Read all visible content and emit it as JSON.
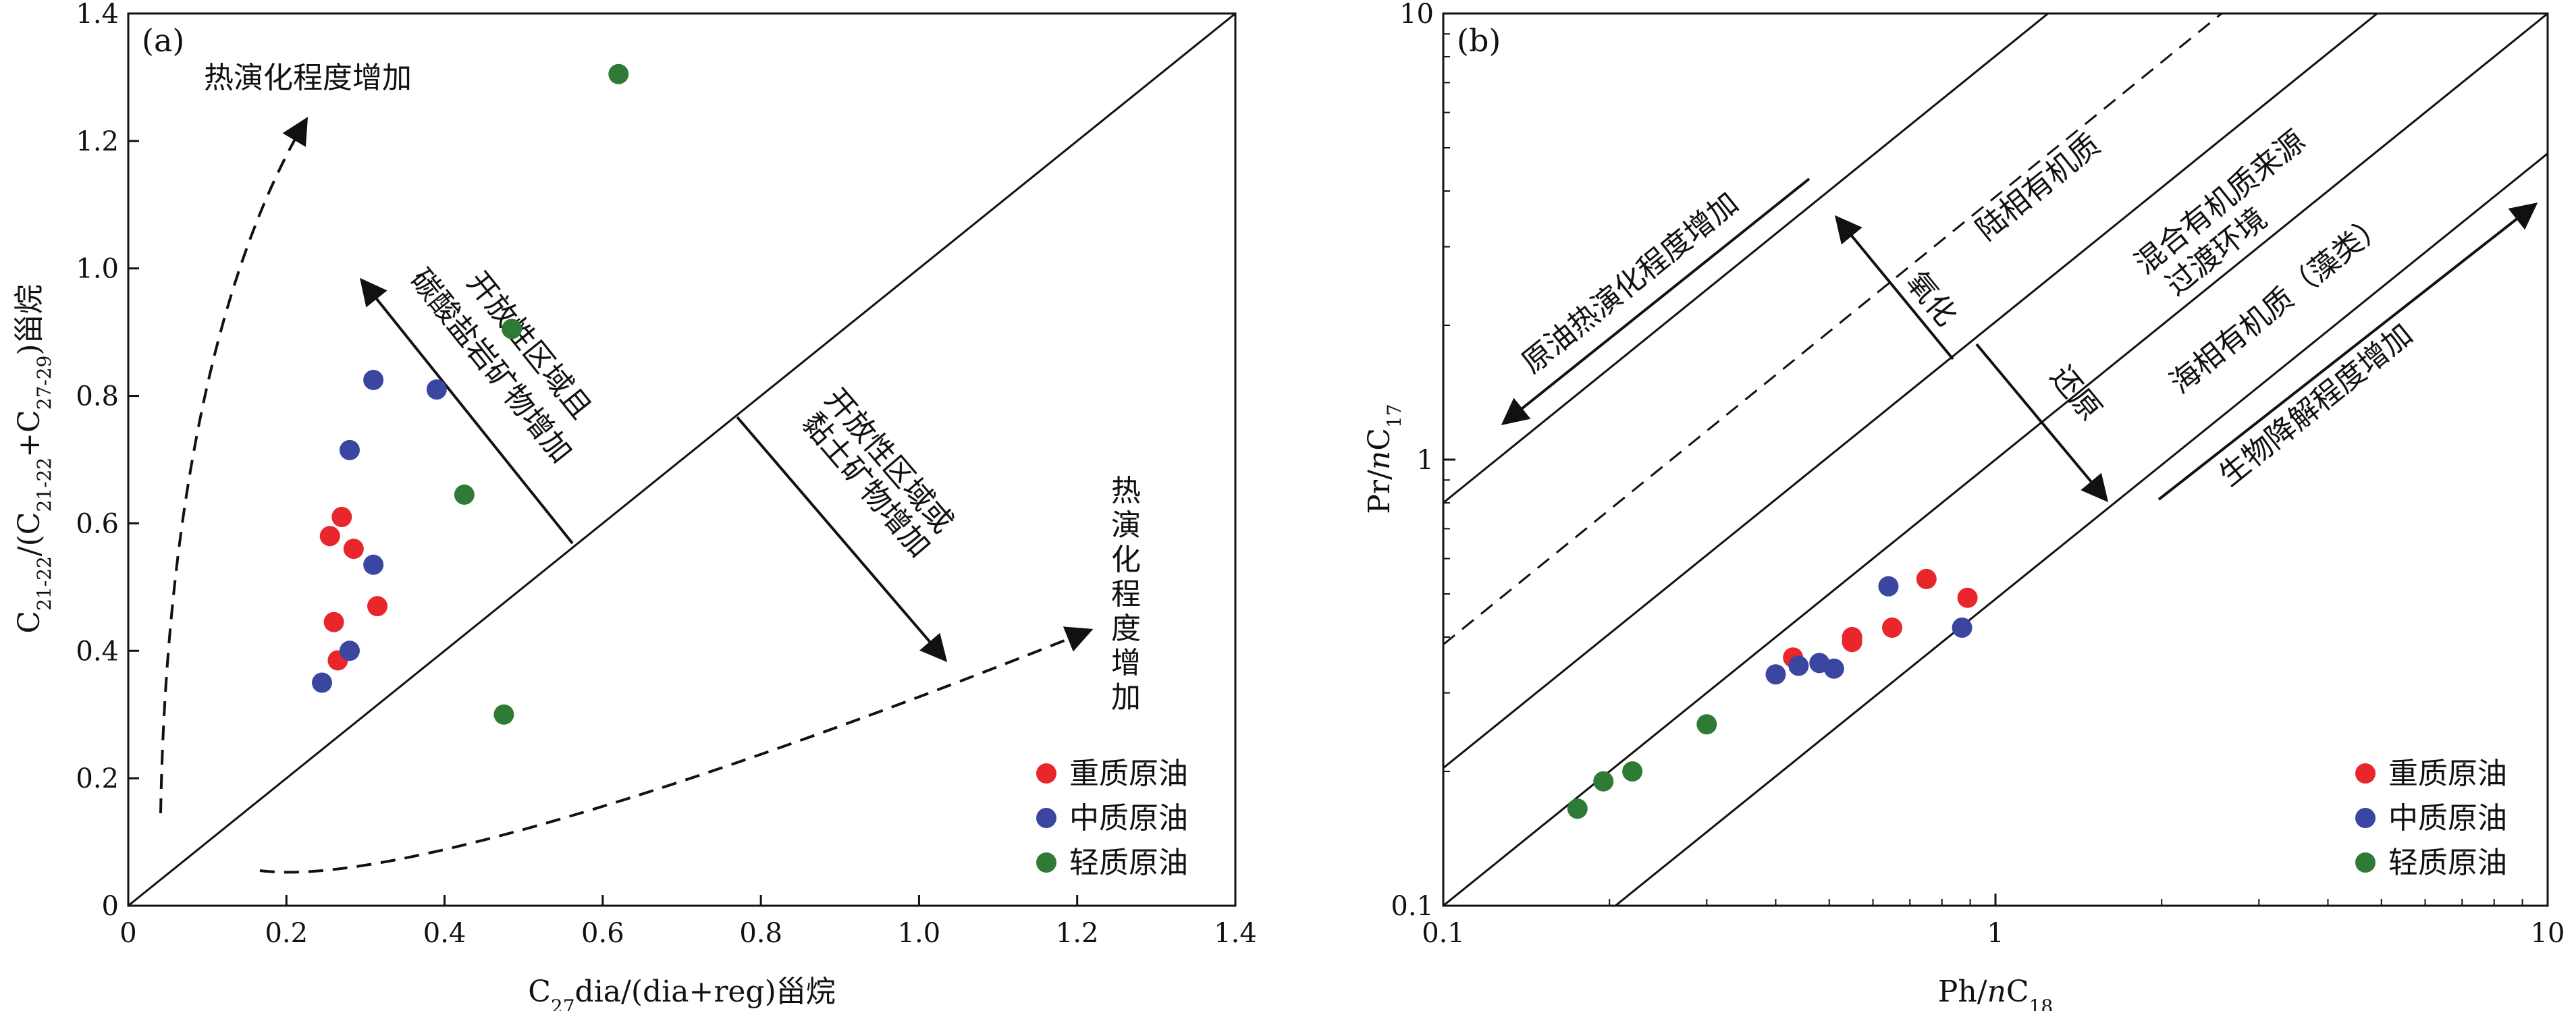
{
  "colors": {
    "heavy": "#e8262b",
    "medium": "#3a46a0",
    "light": "#2f7a35",
    "axis": "#111111"
  },
  "chart_data": [
    {
      "type": "scatter",
      "panel_label": "(a)",
      "xlabel": {
        "pre": "C",
        "sub1": "27",
        "post": "dia/(dia+reg)甾烷"
      },
      "ylabel": {
        "p1": "C",
        "s1": "21-22",
        "p2": "/(C",
        "s2": "21-22",
        "p3": "+C",
        "s3": "27-29",
        "p4": ")甾烷"
      },
      "xlim": [
        0,
        1.4
      ],
      "ylim": [
        0,
        1.4
      ],
      "x_ticks": [
        "0",
        "0.2",
        "0.4",
        "0.6",
        "0.8",
        "1.0",
        "1.2",
        "1.4"
      ],
      "y_ticks": [
        "0",
        "0.2",
        "0.4",
        "0.6",
        "0.8",
        "1.0",
        "1.2",
        "1.4"
      ],
      "legend_position": "bottom-right",
      "legend": [
        "重质原油",
        "中质原油",
        "轻质原油"
      ],
      "annotations": {
        "thermal_up": "热演化程度增加",
        "thermal_down_chars": [
          "热",
          "演",
          "化",
          "程",
          "度",
          "增",
          "加"
        ],
        "carbonate_line1": "开放性区域且",
        "carbonate_line2": "碳酸盐岩矿物增加",
        "clay_line1": "开放性区域或",
        "clay_line2": "黏土矿物增加"
      },
      "series": [
        {
          "name": "重质原油",
          "color_key": "heavy",
          "points": [
            [
              0.255,
              0.58
            ],
            [
              0.27,
              0.61
            ],
            [
              0.285,
              0.56
            ],
            [
              0.26,
              0.445
            ],
            [
              0.315,
              0.47
            ],
            [
              0.265,
              0.385
            ]
          ]
        },
        {
          "name": "中质原油",
          "color_key": "medium",
          "points": [
            [
              0.31,
              0.825
            ],
            [
              0.39,
              0.81
            ],
            [
              0.28,
              0.715
            ],
            [
              0.31,
              0.535
            ],
            [
              0.28,
              0.4
            ],
            [
              0.245,
              0.35
            ]
          ]
        },
        {
          "name": "轻质原油",
          "color_key": "light",
          "points": [
            [
              0.62,
              1.305
            ],
            [
              0.485,
              0.905
            ],
            [
              0.425,
              0.645
            ],
            [
              0.475,
              0.3
            ]
          ]
        }
      ]
    },
    {
      "type": "scatter",
      "panel_label": "(b)",
      "scale": "log",
      "xlabel": {
        "pre": "Ph/",
        "ital": "n",
        "post": "C",
        "sub": "18"
      },
      "ylabel": {
        "pre": "Pr/",
        "ital": "n",
        "post": "C",
        "sub": "17"
      },
      "xlim": [
        0.1,
        10
      ],
      "ylim": [
        0.1,
        10
      ],
      "x_ticks": [
        "0.1",
        "1",
        "10"
      ],
      "y_ticks": [
        "0.1",
        "1",
        "10"
      ],
      "legend_position": "bottom-right",
      "legend": [
        "重质原油",
        "中质原油",
        "轻质原油"
      ],
      "annotations": {
        "crude_thermal": "原油热演化程度增加",
        "terrestrial": "陆相有机质",
        "mixed_line1": "混合有机质来源",
        "mixed_line2": "过渡环境",
        "marine": "海相有机质（藻类）",
        "oxidation": "氧化",
        "reduction": "还原",
        "biodegradation": "生物降解程度增加"
      },
      "series": [
        {
          "name": "重质原油",
          "color_key": "heavy",
          "points": [
            [
              0.75,
              0.54
            ],
            [
              0.89,
              0.49
            ],
            [
              0.65,
              0.42
            ],
            [
              0.55,
              0.4
            ],
            [
              0.55,
              0.39
            ],
            [
              0.43,
              0.36
            ]
          ]
        },
        {
          "name": "中质原油",
          "color_key": "medium",
          "points": [
            [
              0.64,
              0.52
            ],
            [
              0.87,
              0.42
            ],
            [
              0.4,
              0.33
            ],
            [
              0.44,
              0.345
            ],
            [
              0.48,
              0.35
            ],
            [
              0.51,
              0.34
            ]
          ]
        },
        {
          "name": "轻质原油",
          "color_key": "light",
          "points": [
            [
              0.3,
              0.255
            ],
            [
              0.22,
              0.2
            ],
            [
              0.195,
              0.19
            ],
            [
              0.175,
              0.165
            ]
          ]
        }
      ]
    }
  ]
}
